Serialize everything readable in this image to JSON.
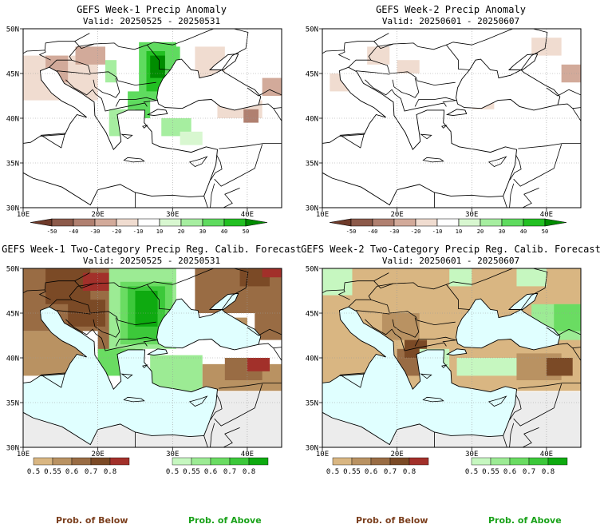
{
  "colors": {
    "ocean": "#e0ffff",
    "land_bg": "#ffffff",
    "pale_gray": "#ececec",
    "below_label": "#7b3f1e",
    "above_label": "#1aa21a"
  },
  "anomaly_scale": {
    "labels": [
      "-50",
      "-40",
      "-30",
      "-20",
      "-10",
      "10",
      "20",
      "30",
      "40",
      "50"
    ],
    "colors": [
      "#6e3a2a",
      "#8c5a4a",
      "#b08070",
      "#d2aa9a",
      "#f0dcd0",
      "#ffffff",
      "#d8f7d0",
      "#a6eea0",
      "#5fdb5f",
      "#22c022",
      "#008c00"
    ]
  },
  "prob_below_scale": {
    "labels": [
      "0.5",
      "0.55",
      "0.6",
      "0.7",
      "0.8"
    ],
    "colors": [
      "#d9b682",
      "#b99262",
      "#996c44",
      "#7b4a26",
      "#a2302a"
    ]
  },
  "prob_above_scale": {
    "labels": [
      "0.5",
      "0.55",
      "0.6",
      "0.7",
      "0.8"
    ],
    "colors": [
      "#c6f7c0",
      "#9ceb94",
      "#6adc62",
      "#3cc83a",
      "#0eaa10"
    ]
  },
  "panels": [
    {
      "id": "w1-anom",
      "title": "GEFS Week-1 Precip Anomaly",
      "valid": "Valid: 20250525 - 20250531",
      "kind": "anomaly"
    },
    {
      "id": "w2-anom",
      "title": "GEFS Week-2 Precip Anomaly",
      "valid": "Valid: 20250601 - 20250607",
      "kind": "anomaly"
    },
    {
      "id": "w1-prob",
      "title": "GEFS Week-1 Two-Category Precip Reg. Calib. Forecast",
      "valid": "Valid: 20250525 - 20250531",
      "kind": "prob"
    },
    {
      "id": "w2-prob",
      "title": "GEFS Week-2 Two-Category Precip Reg. Calib. Forecast",
      "valid": "Valid: 20250601 - 20250607",
      "kind": "prob"
    }
  ],
  "axis": {
    "lat_labels": [
      "30N",
      "35N",
      "40N",
      "45N",
      "50N"
    ],
    "lon_labels": [
      "10E",
      "20E",
      "30E",
      "40E"
    ]
  },
  "legend_titles": {
    "below": "Prob. of Below",
    "above": "Prob. of Above"
  }
}
